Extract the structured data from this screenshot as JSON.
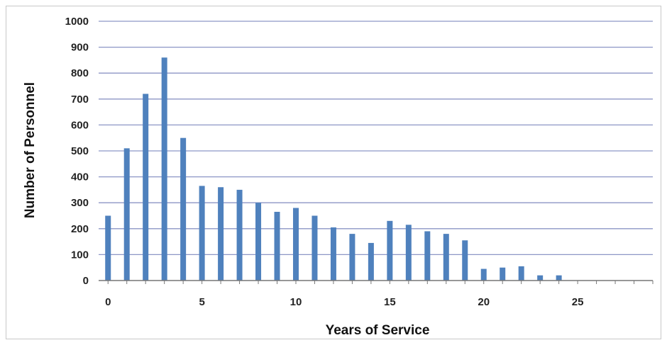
{
  "chart_data": {
    "type": "bar",
    "title": "",
    "xlabel": "Years of Service",
    "ylabel": "Number of Personnel",
    "x": [
      0,
      1,
      2,
      3,
      4,
      5,
      6,
      7,
      8,
      9,
      10,
      11,
      12,
      13,
      14,
      15,
      16,
      17,
      18,
      19,
      20,
      21,
      22,
      23,
      24
    ],
    "values": [
      250,
      510,
      720,
      860,
      550,
      365,
      360,
      350,
      300,
      265,
      280,
      250,
      205,
      180,
      145,
      230,
      215,
      190,
      180,
      155,
      45,
      50,
      55,
      20,
      20
    ],
    "xlim": [
      -0.5,
      29
    ],
    "ylim": [
      0,
      1000
    ],
    "x_ticks": [
      0,
      5,
      10,
      15,
      20,
      25
    ],
    "y_ticks": [
      0,
      100,
      200,
      300,
      400,
      500,
      600,
      700,
      800,
      900,
      1000
    ],
    "grid": true,
    "bar_color": "#4f81bd",
    "grid_color": "#8d96c6"
  }
}
